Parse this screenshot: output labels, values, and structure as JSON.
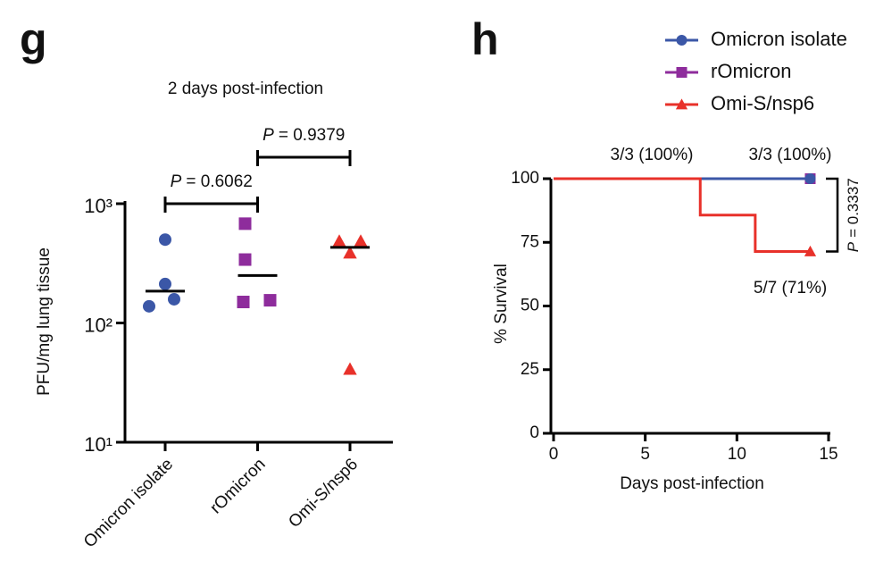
{
  "chart_data": [
    {
      "type": "dot",
      "panel": "g",
      "title": "2 days post-infection",
      "y_label": "PFU/mg lung tissue",
      "categories": [
        "Omicron isolate",
        "rOmicron",
        "Omi-S/nsp6"
      ],
      "colors": [
        "#3b57a7",
        "#8e2c9c",
        "#e8312a"
      ],
      "markers": [
        "circle",
        "square",
        "triangle"
      ],
      "points": [
        [
          500,
          212,
          138,
          158
        ],
        [
          680,
          340,
          150,
          155
        ],
        [
          485,
          485,
          387,
          41
        ]
      ],
      "means": [
        185,
        250,
        430
      ],
      "log_scale": true,
      "ylim": [
        10,
        1000
      ],
      "yticks": [
        {
          "value": 10,
          "label": "10¹"
        },
        {
          "value": 100,
          "label": "10²"
        },
        {
          "value": 1000,
          "label": "10³"
        }
      ],
      "comparisons": [
        {
          "pair": [
            0,
            1
          ],
          "symbol": "P",
          "text": "= 0.6062"
        },
        {
          "pair": [
            1,
            2
          ],
          "symbol": "P",
          "text": "= 0.9379"
        }
      ]
    },
    {
      "type": "survival",
      "panel": "h",
      "x_label": "Days post-infection",
      "y_label": "% Survival",
      "xlim": [
        0,
        15
      ],
      "xticks": [
        0,
        5,
        10,
        15
      ],
      "ylim": [
        0,
        100
      ],
      "yticks": [
        0,
        25,
        50,
        75,
        100
      ],
      "legend": "top-right",
      "series": [
        {
          "name": "Omicron isolate",
          "color": "#3b57a7",
          "marker": "circle",
          "x": [
            0,
            14
          ],
          "values": [
            100,
            100
          ]
        },
        {
          "name": "rOmicron",
          "color": "#8e2c9c",
          "marker": "square",
          "x": [
            0,
            14
          ],
          "values": [
            100,
            100
          ]
        },
        {
          "name": "Omi-S/nsp6",
          "color": "#e8312a",
          "marker": "triangle",
          "x": [
            0,
            8,
            8,
            11,
            11,
            14
          ],
          "values": [
            100,
            100,
            85.7,
            85.7,
            71.4,
            71.4
          ]
        }
      ],
      "annotations": [
        {
          "text": "3/3 (100%)",
          "color": "#3b57a7"
        },
        {
          "text": "3/3 (100%)",
          "color": "#8e2c9c"
        },
        {
          "text": "5/7 (71%)",
          "color": "#e8312a"
        }
      ],
      "comparison": {
        "symbol": "P",
        "text": "= 0.3337"
      }
    }
  ]
}
